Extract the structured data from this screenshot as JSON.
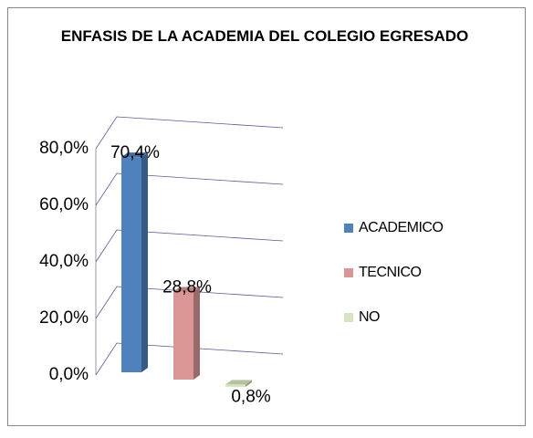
{
  "chart_data": {
    "type": "bar",
    "title": "ENFASIS DE LA ACADEMIA DEL COLEGIO EGRESADO",
    "series": [
      {
        "name": "ACADEMICO",
        "color": "#4f81bd",
        "values": [
          70.4
        ],
        "value_labels": [
          "70,4%"
        ]
      },
      {
        "name": "TECNICO",
        "color": "#d99694",
        "values": [
          28.8
        ],
        "value_labels": [
          "28,8%"
        ]
      },
      {
        "name": "NO",
        "color": "#d7e4bd",
        "values": [
          0.8
        ],
        "value_labels": [
          "0,8%"
        ]
      }
    ],
    "ylim": [
      0,
      80
    ],
    "yticks": [
      {
        "value": 0,
        "label": "0,0%"
      },
      {
        "value": 20,
        "label": "20,0%"
      },
      {
        "value": 40,
        "label": "40,0%"
      },
      {
        "value": 60,
        "label": "60,0%"
      },
      {
        "value": 80,
        "label": "80,0%"
      }
    ],
    "grid": true,
    "legend": "right"
  }
}
